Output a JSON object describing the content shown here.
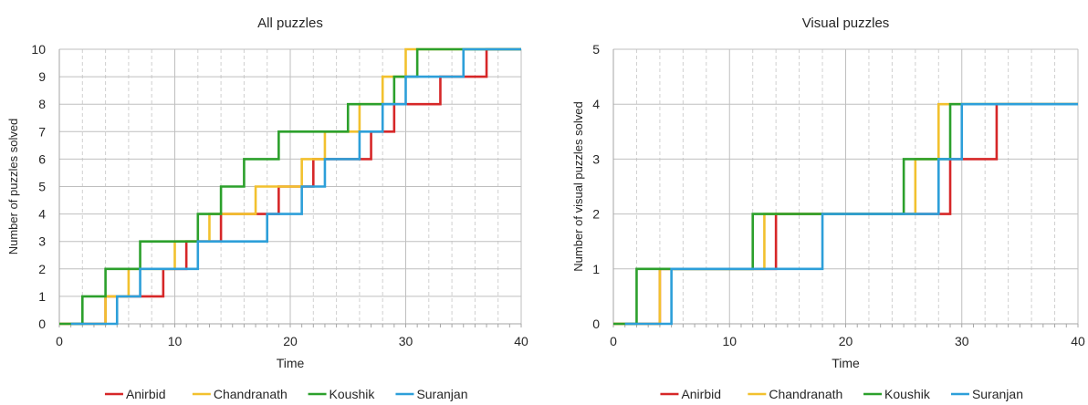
{
  "chart_data": [
    {
      "type": "line",
      "step": true,
      "title": "All puzzles",
      "xlabel": "Time",
      "ylabel": "Number of puzzles solved",
      "xlim": [
        0,
        40
      ],
      "ylim": [
        0,
        10
      ],
      "xticks": [
        0,
        10,
        20,
        30,
        40
      ],
      "yticks": [
        0,
        1,
        2,
        3,
        4,
        5,
        6,
        7,
        8,
        9,
        10
      ],
      "grid": true,
      "legend": "bottom",
      "series": [
        {
          "name": "Anirbid",
          "color": "#d62728",
          "x": [
            0,
            4,
            9,
            11,
            14,
            19,
            22,
            27,
            29,
            33,
            37,
            40
          ],
          "y": [
            0,
            1,
            2,
            3,
            4,
            5,
            6,
            7,
            8,
            9,
            10,
            10
          ]
        },
        {
          "name": "Chandranath",
          "color": "#f2c12e",
          "x": [
            0,
            4,
            6,
            10,
            13,
            17,
            21,
            23,
            26,
            28,
            30,
            40
          ],
          "y": [
            0,
            1,
            2,
            3,
            4,
            5,
            6,
            7,
            8,
            9,
            10,
            10
          ]
        },
        {
          "name": "Koushik",
          "color": "#2ca02c",
          "x": [
            0,
            2,
            4,
            7,
            12,
            14,
            16,
            19,
            25,
            29,
            31,
            40
          ],
          "y": [
            0,
            1,
            2,
            3,
            4,
            5,
            6,
            7,
            8,
            9,
            10,
            10
          ]
        },
        {
          "name": "Suranjan",
          "color": "#2d9fd9",
          "x": [
            1,
            5,
            7,
            12,
            18,
            21,
            23,
            26,
            28,
            30,
            35,
            40
          ],
          "y": [
            0,
            1,
            2,
            3,
            4,
            5,
            6,
            7,
            8,
            9,
            10,
            10
          ]
        }
      ]
    },
    {
      "type": "line",
      "step": true,
      "title": "Visual puzzles",
      "xlabel": "Time",
      "ylabel": "Number of visual puzzles solved",
      "xlim": [
        0,
        40
      ],
      "ylim": [
        0,
        5
      ],
      "xticks": [
        0,
        10,
        20,
        30,
        40
      ],
      "yticks": [
        0,
        1,
        2,
        3,
        4,
        5
      ],
      "grid": true,
      "legend": "bottom",
      "series": [
        {
          "name": "Anirbid",
          "color": "#d62728",
          "x": [
            0,
            4,
            14,
            29,
            33,
            40
          ],
          "y": [
            0,
            1,
            2,
            3,
            4,
            4
          ]
        },
        {
          "name": "Chandranath",
          "color": "#f2c12e",
          "x": [
            0,
            4,
            13,
            26,
            28,
            40
          ],
          "y": [
            0,
            1,
            2,
            3,
            4,
            4
          ]
        },
        {
          "name": "Koushik",
          "color": "#2ca02c",
          "x": [
            0,
            2,
            12,
            25,
            29,
            40
          ],
          "y": [
            0,
            1,
            2,
            3,
            4,
            4
          ]
        },
        {
          "name": "Suranjan",
          "color": "#2d9fd9",
          "x": [
            1,
            5,
            18,
            28,
            30,
            40
          ],
          "y": [
            0,
            1,
            2,
            3,
            4,
            4
          ]
        }
      ]
    }
  ]
}
